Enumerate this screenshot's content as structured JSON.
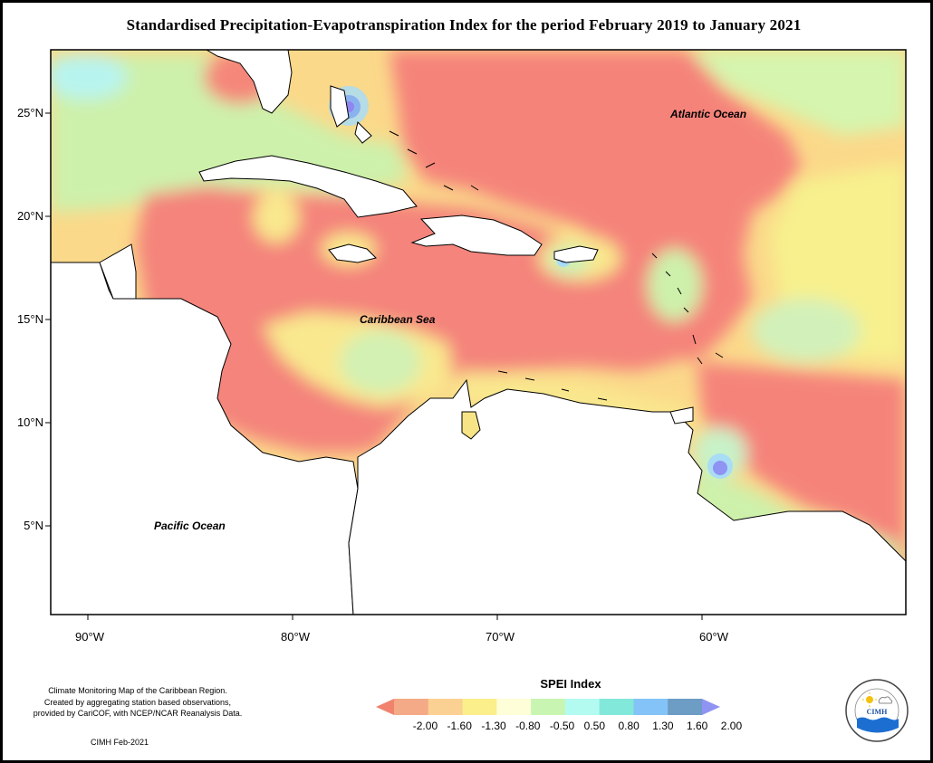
{
  "title": "Standardised Precipitation-Evapotranspiration Index for the period February 2019 to January 2021",
  "map": {
    "lat_labels": [
      "25°N",
      "20°N",
      "15°N",
      "10°N",
      "5°N"
    ],
    "lon_labels": [
      "90°W",
      "80°W",
      "70°W",
      "60°W"
    ],
    "ocean_labels": {
      "atlantic": "Atlantic Ocean",
      "caribbean": "Caribbean Sea",
      "pacific": "Pacific Ocean"
    }
  },
  "legend": {
    "title": "SPEI Index",
    "ticks": [
      "-2.00",
      "-1.60",
      "-1.30",
      "-0.80",
      "-0.50",
      "0.50",
      "0.80",
      "1.30",
      "1.60",
      "2.00"
    ],
    "colors": [
      "#f0826e",
      "#f5aa87",
      "#fbd193",
      "#fbef8c",
      "#fefed8",
      "#c9f5b3",
      "#b3fbf1",
      "#82e8da",
      "#83c3f7",
      "#6d9cc4",
      "#8f93f2"
    ]
  },
  "credits": {
    "lines": [
      "Climate Monitoring Map of the Caribbean Region.",
      "Created by aggregating station based observations,",
      "provided by CariCOF, with NCEP/NCAR Reanalysis Data."
    ],
    "date": "CIMH Feb-2021"
  },
  "logo": {
    "name": "cimh-logo",
    "text": "CIMH"
  }
}
